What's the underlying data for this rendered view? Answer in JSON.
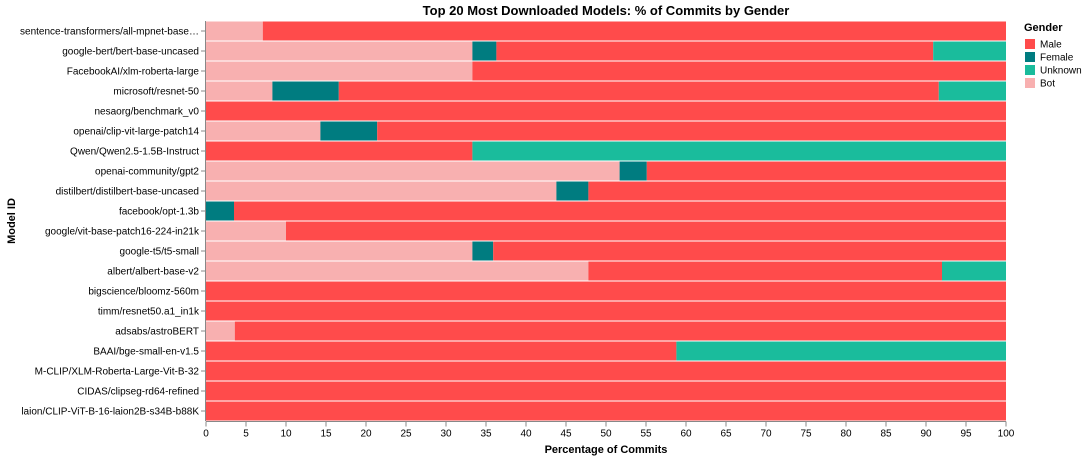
{
  "chart_data": {
    "type": "bar",
    "orientation": "horizontal",
    "stacked": "normalize",
    "title": "Top 20 Most Downloaded Models: % of Commits by Gender",
    "xlabel": "Percentage of Commits",
    "ylabel": "Model ID",
    "xlim": [
      0,
      100
    ],
    "xticks": [
      0,
      5,
      10,
      15,
      20,
      25,
      30,
      35,
      40,
      45,
      50,
      55,
      60,
      65,
      70,
      75,
      80,
      85,
      90,
      95,
      100
    ],
    "grid": false,
    "legend": {
      "title": "Gender",
      "position": "right",
      "entries": [
        {
          "name": "Male",
          "color": "#FF4B4B"
        },
        {
          "name": "Female",
          "color": "#007C80"
        },
        {
          "name": "Unknown",
          "color": "#1ABC9C"
        },
        {
          "name": "Bot",
          "color": "#F8B0B0"
        }
      ]
    },
    "stack_order": [
      "Bot",
      "Female",
      "Male",
      "Unknown"
    ],
    "categories": [
      "sentence-transformers/all-mpnet-base…",
      "google-bert/bert-base-uncased",
      "FacebookAI/xlm-roberta-large",
      "microsoft/resnet-50",
      "nesaorg/benchmark_v0",
      "openai/clip-vit-large-patch14",
      "Qwen/Qwen2.5-1.5B-Instruct",
      "openai-community/gpt2",
      "distilbert/distilbert-base-uncased",
      "facebook/opt-1.3b",
      "google/vit-base-patch16-224-in21k",
      "google-t5/t5-small",
      "albert/albert-base-v2",
      "bigscience/bloomz-560m",
      "timm/resnet50.a1_in1k",
      "adsabs/astroBERT",
      "BAAI/bge-small-en-v1.5",
      "M-CLIP/XLM-Roberta-Large-Vit-B-32",
      "CIDAS/clipseg-rd64-refined",
      "laion/CLIP-ViT-B-16-laion2B-s34B-b88K"
    ],
    "series": [
      {
        "name": "Bot",
        "values": [
          7.1,
          33.3,
          33.3,
          8.3,
          0,
          14.3,
          0,
          51.7,
          43.8,
          0,
          10.0,
          33.3,
          47.8,
          0,
          0,
          3.6,
          0,
          0,
          0,
          0
        ]
      },
      {
        "name": "Female",
        "values": [
          0,
          3.0,
          0,
          8.3,
          0,
          7.1,
          0,
          3.4,
          4.0,
          3.5,
          0,
          2.6,
          0,
          0,
          0,
          0,
          0,
          0,
          0,
          0
        ]
      },
      {
        "name": "Male",
        "values": [
          92.9,
          54.6,
          66.7,
          75.0,
          100,
          78.6,
          33.3,
          44.9,
          52.2,
          96.5,
          90.0,
          64.1,
          44.2,
          100,
          100,
          96.4,
          58.8,
          100,
          100,
          100
        ]
      },
      {
        "name": "Unknown",
        "values": [
          0,
          9.1,
          0,
          8.4,
          0,
          0,
          66.7,
          0,
          0,
          0,
          0,
          0,
          8.0,
          0,
          0,
          0,
          41.2,
          0,
          0,
          0
        ]
      }
    ]
  }
}
